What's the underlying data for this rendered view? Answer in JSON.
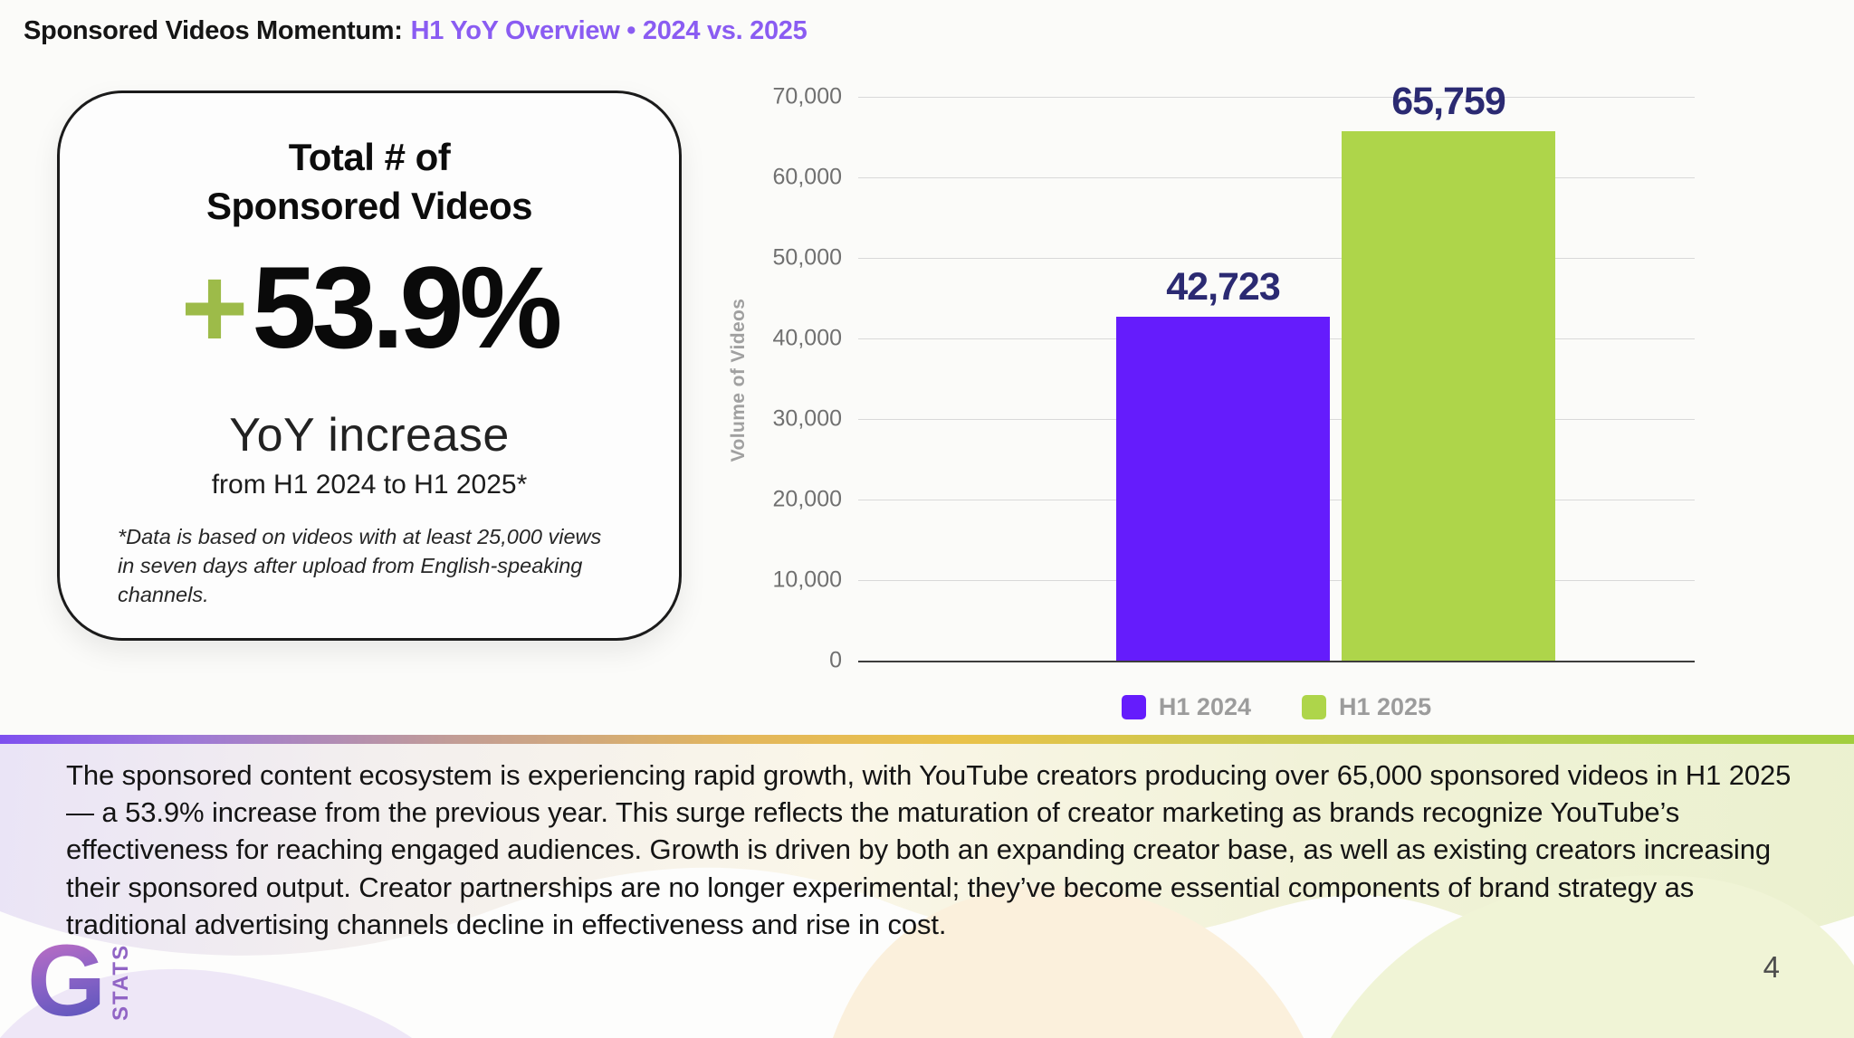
{
  "header": {
    "title_prefix": "Sponsored Videos Momentum:",
    "title_highlight": "H1 YoY Overview • 2024 vs. 2025",
    "highlight_color": "#8a5cf2"
  },
  "stat_card": {
    "title_line1": "Total # of",
    "title_line2": "Sponsored Videos",
    "plus": "+",
    "plus_color": "#9dbb49",
    "value": "53.9%",
    "subtitle": "YoY increase",
    "period": "from H1 2024 to H1 2025*",
    "footnote": "*Data is based on videos with at least 25,000 views in seven days after upload from English-speaking channels."
  },
  "chart_data": {
    "type": "bar",
    "categories": [
      "H1 2024",
      "H1 2025"
    ],
    "values": [
      42723,
      65759
    ],
    "value_labels": [
      "42,723",
      "65,759"
    ],
    "title": "",
    "xlabel": "",
    "ylabel": "Volume of Videos",
    "ylim": [
      0,
      70000
    ],
    "ytick_step": 10000,
    "grid": true,
    "legend_position": "bottom",
    "bar_colors": [
      "#651cfc",
      "#aed54a"
    ],
    "value_label_color": "#2b2a72"
  },
  "body": {
    "paragraph": "The sponsored content ecosystem is experiencing rapid growth, with YouTube creators producing over 65,000 sponsored videos in H1 2025 — a 53.9% increase from the previous year. This surge reflects the maturation of creator marketing as brands recognize YouTube’s effectiveness for reaching engaged audiences. Growth is driven by both an expanding creator base, as well as existing creators increasing their sponsored output. Creator partnerships are no longer experimental; they’ve become essential components of brand strategy as traditional advertising channels decline in effectiveness and rise in cost."
  },
  "footer": {
    "logo_letter": "G",
    "logo_text": "STATS",
    "page_number": "4"
  }
}
